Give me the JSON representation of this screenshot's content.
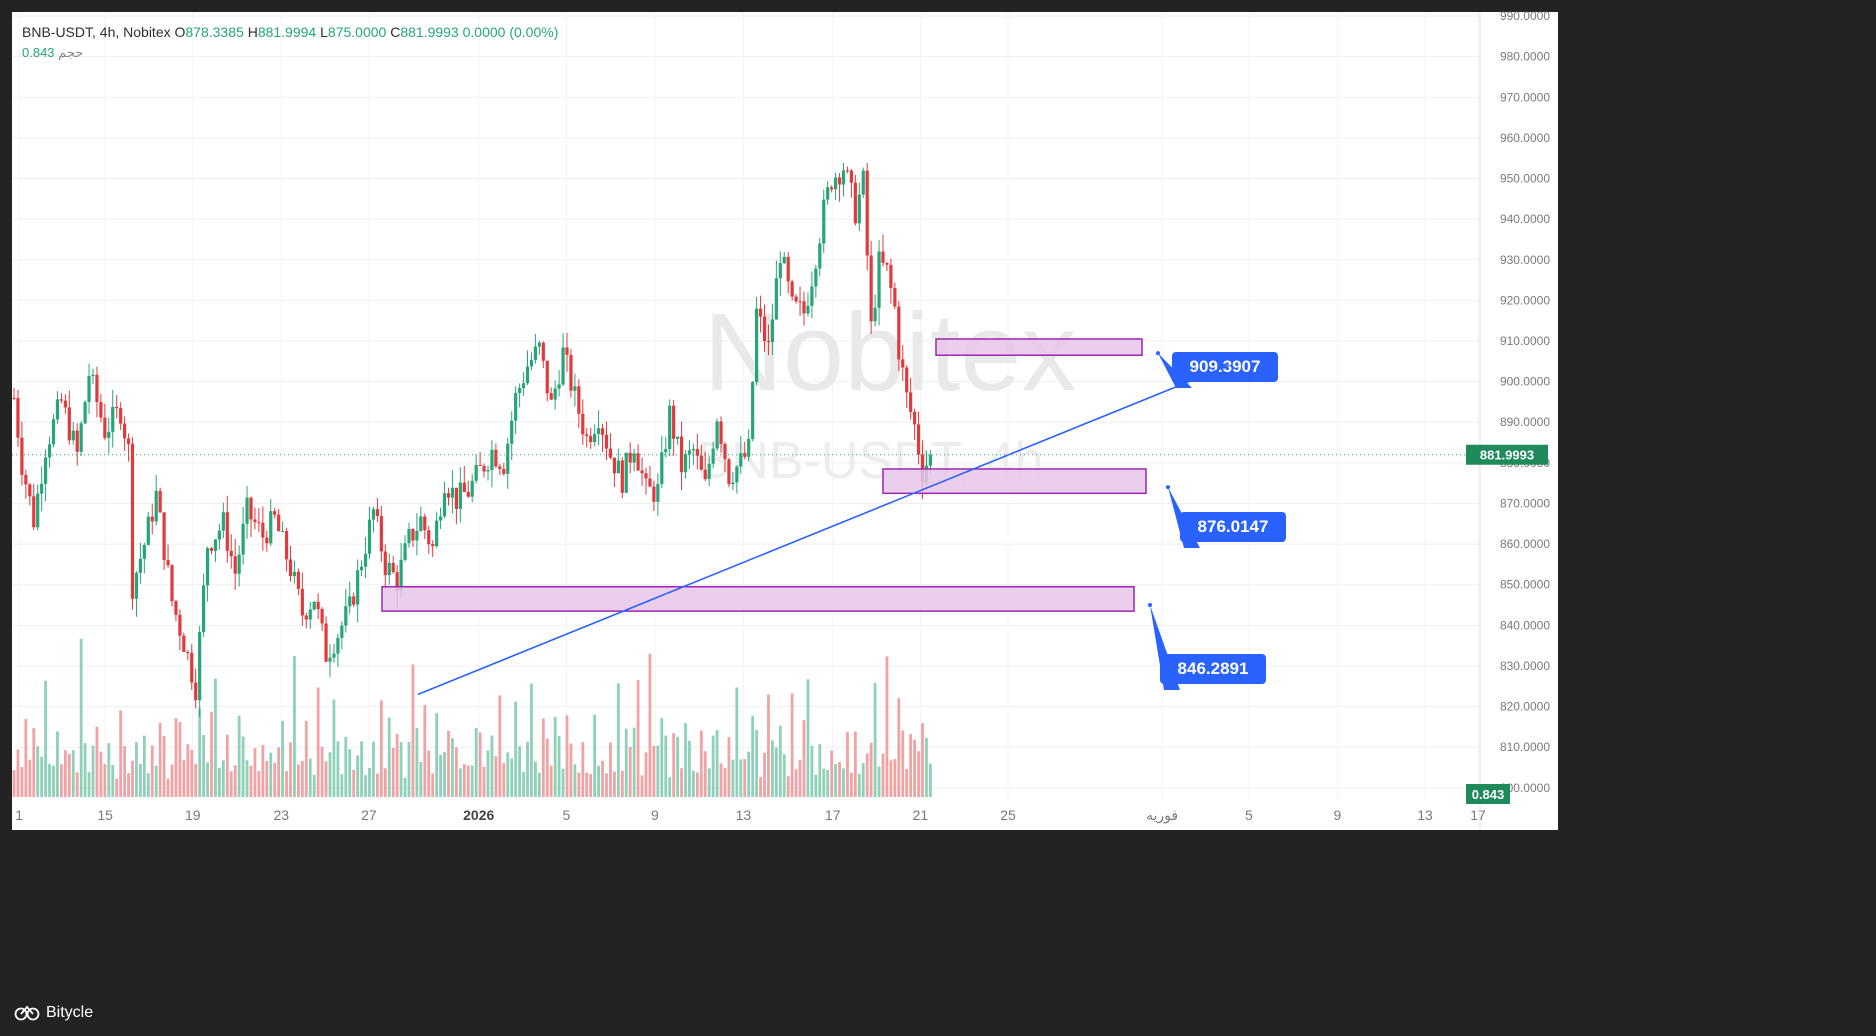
{
  "header": {
    "symbol": "BNB-USDT, 4h, Nobitex",
    "o_label": "O",
    "o_value": "878.3385",
    "h_label": "H",
    "h_value": "881.9994",
    "l_label": "L",
    "l_value": "875.0000",
    "c_label": "C",
    "c_value": "881.9993",
    "change": "0.0000 (0.00%)",
    "volume_label": "حجم",
    "volume_value": "0.843"
  },
  "watermark": {
    "main": "Nobitex",
    "sub": "BNB-USDT, 4h"
  },
  "footer": {
    "brand": "Bitycle"
  },
  "colors": {
    "background": "#232323",
    "plot_bg": "#ffffff",
    "up": "#26a677",
    "down": "#e03a3e",
    "volume_up": "#8fd0b8",
    "volume_down": "#f0a3a5",
    "trendline": "#2962ff",
    "zone_fill": "#e7c5ea",
    "zone_border": "#9c27b0",
    "label_bg": "#2962ff",
    "price_tag": "#1f8a5b"
  },
  "chart_data": {
    "type": "candlestick",
    "ylim": [
      797,
      991
    ],
    "y_ticks": [
      "990.0000",
      "980.0000",
      "970.0000",
      "960.0000",
      "950.0000",
      "940.0000",
      "930.0000",
      "920.0000",
      "910.0000",
      "900.0000",
      "890.0000",
      "880.0000",
      "870.0000",
      "860.0000",
      "850.0000",
      "840.0000",
      "830.0000",
      "820.0000",
      "810.0000",
      "800.0000"
    ],
    "x_ticks": [
      "1",
      "15",
      "19",
      "23",
      "27",
      "2026",
      "5",
      "9",
      "13",
      "17",
      "21",
      "25",
      "فوریه",
      "5",
      "9",
      "13",
      "17"
    ],
    "current_price": "881.9993",
    "current_volume": "0.843",
    "last_close": 881.9993,
    "price_path": [
      [
        0,
        896
      ],
      [
        2,
        880
      ],
      [
        5,
        866
      ],
      [
        8,
        884
      ],
      [
        12,
        895
      ],
      [
        16,
        882
      ],
      [
        19,
        902
      ],
      [
        23,
        888
      ],
      [
        27,
        893
      ],
      [
        29,
        883
      ],
      [
        30,
        850
      ],
      [
        33,
        860
      ],
      [
        36,
        872
      ],
      [
        40,
        846
      ],
      [
        43,
        836
      ],
      [
        46,
        825
      ],
      [
        49,
        860
      ],
      [
        53,
        865
      ],
      [
        56,
        853
      ],
      [
        59,
        868
      ],
      [
        63,
        862
      ],
      [
        66,
        866
      ],
      [
        70,
        854
      ],
      [
        73,
        843
      ],
      [
        76,
        847
      ],
      [
        79,
        833
      ],
      [
        82,
        838
      ],
      [
        85,
        844
      ],
      [
        88,
        856
      ],
      [
        91,
        868
      ],
      [
        94,
        855
      ],
      [
        97,
        851
      ],
      [
        100,
        861
      ],
      [
        103,
        866
      ],
      [
        106,
        859
      ],
      [
        109,
        876
      ],
      [
        112,
        871
      ],
      [
        115,
        873
      ],
      [
        118,
        878
      ],
      [
        121,
        883
      ],
      [
        124,
        880
      ],
      [
        127,
        896
      ],
      [
        130,
        904
      ],
      [
        133,
        908
      ],
      [
        136,
        894
      ],
      [
        139,
        907
      ],
      [
        142,
        896
      ],
      [
        145,
        886
      ],
      [
        148,
        892
      ],
      [
        151,
        882
      ],
      [
        154,
        876
      ],
      [
        157,
        885
      ],
      [
        160,
        873
      ],
      [
        163,
        873
      ],
      [
        166,
        892
      ],
      [
        169,
        879
      ],
      [
        172,
        883
      ],
      [
        175,
        874
      ],
      [
        178,
        892
      ],
      [
        181,
        877
      ],
      [
        184,
        880
      ],
      [
        186,
        883
      ],
      [
        188,
        917
      ],
      [
        191,
        908
      ],
      [
        194,
        932
      ],
      [
        197,
        918
      ],
      [
        200,
        917
      ],
      [
        202,
        926
      ],
      [
        205,
        942
      ],
      [
        207,
        950
      ],
      [
        210,
        953
      ],
      [
        213,
        942
      ],
      [
        215,
        949
      ],
      [
        217,
        913
      ],
      [
        219,
        929
      ],
      [
        221,
        927
      ],
      [
        223,
        918
      ],
      [
        224,
        908
      ],
      [
        226,
        896
      ],
      [
        228,
        889
      ],
      [
        230,
        878
      ],
      [
        232,
        882
      ]
    ],
    "volume_profile": [
      8,
      12,
      7,
      22,
      6,
      15,
      9,
      18,
      25,
      5,
      10,
      28,
      14,
      9,
      20,
      12,
      6,
      32,
      11,
      8,
      16,
      24,
      10,
      7,
      14,
      9,
      5,
      19,
      13,
      6
    ],
    "zones": [
      {
        "low": 906.5,
        "high": 910.5,
        "label": "909.3907"
      },
      {
        "low": 872.5,
        "high": 878.5,
        "label": "876.0147"
      },
      {
        "low": 843.5,
        "high": 849.5,
        "label": "846.2891"
      }
    ],
    "trendline": {
      "from": {
        "bar": 82,
        "price": 823
      },
      "to": {
        "bar": 247,
        "price": 904
      }
    }
  }
}
